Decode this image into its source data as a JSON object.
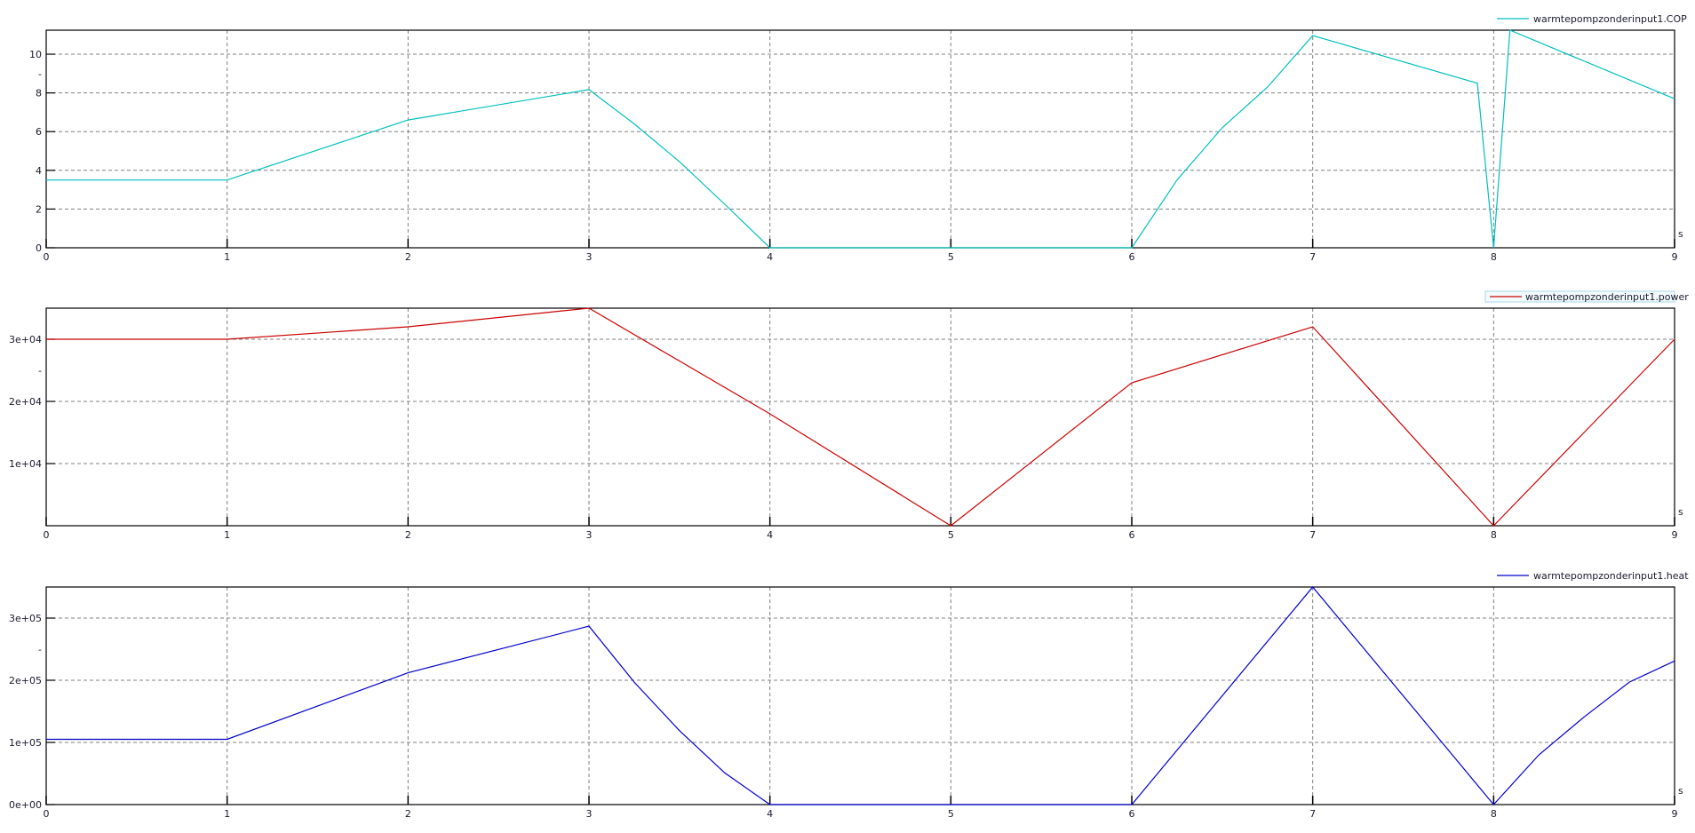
{
  "chart_data": [
    {
      "type": "line",
      "x_unit_label": "s",
      "xlim": [
        0,
        9
      ],
      "ylim": [
        0,
        11.24
      ],
      "x_ticks": [
        "0",
        "1",
        "2",
        "3",
        "4",
        "5",
        "6",
        "7",
        "8",
        "9"
      ],
      "x_tick_values": [
        0,
        1,
        2,
        3,
        4,
        5,
        6,
        7,
        8,
        9
      ],
      "y_ticks": [
        "0",
        "2",
        "4",
        "6",
        "8",
        "-",
        "10"
      ],
      "y_tick_values": [
        0,
        2,
        4,
        6,
        8,
        9,
        10
      ],
      "y_grid_values": [
        2,
        4,
        6,
        8,
        10
      ],
      "grid": true,
      "legend_placement": "top-right",
      "legend_boxed": false,
      "series": [
        {
          "name": "warmtepompzonderinput1.COP",
          "color": "#00bfbf",
          "x": [
            0,
            1,
            2,
            3,
            3.25,
            3.5,
            3.75,
            4,
            5,
            6,
            6.25,
            6.5,
            6.75,
            7,
            7.91,
            8.0,
            8.09,
            9
          ],
          "y": [
            3.5,
            3.5,
            6.6,
            8.17,
            6.4,
            4.45,
            2.25,
            0,
            0,
            0,
            3.5,
            6.2,
            8.3,
            10.96,
            8.5,
            0,
            11.24,
            7.7
          ]
        }
      ]
    },
    {
      "type": "line",
      "x_unit_label": "s",
      "xlim": [
        0,
        9
      ],
      "ylim": [
        0,
        35000
      ],
      "x_ticks": [
        "0",
        "1",
        "2",
        "3",
        "4",
        "5",
        "6",
        "7",
        "8",
        "9"
      ],
      "x_tick_values": [
        0,
        1,
        2,
        3,
        4,
        5,
        6,
        7,
        8,
        9
      ],
      "y_ticks": [
        "1e+04",
        "2e+04",
        "-",
        "3e+04"
      ],
      "y_tick_values": [
        10000,
        20000,
        25000,
        30000
      ],
      "y_grid_values": [
        10000,
        20000,
        30000
      ],
      "grid": true,
      "legend_placement": "top-right",
      "legend_boxed": true,
      "series": [
        {
          "name": "warmtepompzonderinput1.power",
          "color": "#cc0000",
          "x": [
            0,
            1,
            2,
            3,
            4,
            5,
            6,
            7,
            8,
            9
          ],
          "y": [
            30000,
            30000,
            32000,
            35000,
            18000,
            0,
            23000,
            32000,
            0,
            30000
          ]
        }
      ]
    },
    {
      "type": "line",
      "x_unit_label": "s",
      "xlim": [
        0,
        9
      ],
      "ylim": [
        0,
        350000
      ],
      "x_ticks": [
        "0",
        "1",
        "2",
        "3",
        "4",
        "5",
        "6",
        "7",
        "8",
        "9"
      ],
      "x_tick_values": [
        0,
        1,
        2,
        3,
        4,
        5,
        6,
        7,
        8,
        9
      ],
      "y_ticks": [
        "0e+00",
        "1e+05",
        "2e+05",
        "-",
        "3e+05"
      ],
      "y_tick_values": [
        0,
        100000,
        200000,
        250000,
        300000
      ],
      "y_grid_values": [
        100000,
        200000,
        300000
      ],
      "grid": true,
      "legend_placement": "top-right",
      "legend_boxed": false,
      "series": [
        {
          "name": "warmtepompzonderinput1.heat",
          "color": "#0000cc",
          "x": [
            0,
            1,
            2,
            3,
            3.25,
            3.5,
            3.75,
            4,
            5,
            6,
            7,
            8,
            8.25,
            8.5,
            8.75,
            9
          ],
          "y": [
            105000,
            105000,
            212000,
            287000,
            197000,
            119000,
            51000,
            0,
            0,
            0,
            350000,
            0,
            80000,
            141000,
            197000,
            231000
          ]
        }
      ]
    }
  ]
}
